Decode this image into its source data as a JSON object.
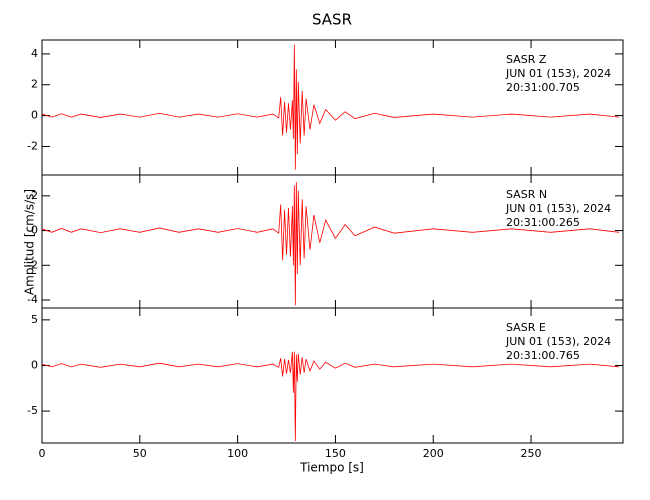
{
  "chart_data": [
    {
      "type": "line",
      "title": "SASR",
      "annotations": [
        "SASR   Z",
        "JUN 01 (153), 2024",
        "20:31:00.705"
      ],
      "x": [
        0,
        5,
        10,
        15,
        20,
        30,
        40,
        50,
        60,
        70,
        80,
        90,
        100,
        110,
        118,
        121,
        122,
        123,
        124,
        125,
        126,
        127,
        128,
        128.5,
        129,
        129.5,
        130,
        130.5,
        131,
        132,
        133,
        134,
        135,
        137,
        139,
        142,
        145,
        150,
        155,
        160,
        170,
        180,
        200,
        220,
        240,
        260,
        280,
        295
      ],
      "values": [
        0.1,
        -0.1,
        0.12,
        -0.1,
        0.1,
        -0.12,
        0.1,
        -0.1,
        0.15,
        -0.1,
        0.1,
        -0.1,
        0.12,
        -0.1,
        0.1,
        -0.15,
        1.2,
        -1.3,
        0.9,
        -1.1,
        0.8,
        -0.9,
        1.0,
        -1.5,
        4.6,
        -3.5,
        3.0,
        -2.5,
        2.2,
        -1.8,
        1.6,
        -1.3,
        1.1,
        -0.9,
        0.7,
        -0.5,
        0.4,
        -0.3,
        0.25,
        -0.2,
        0.15,
        -0.12,
        0.1,
        -0.1,
        0.1,
        -0.1,
        0.1,
        -0.1
      ],
      "color": "#ff0000",
      "xlim": [
        0,
        297
      ],
      "ylim": [
        -3.85,
        4.9
      ],
      "yticks": [
        -2,
        0,
        2,
        4
      ]
    },
    {
      "type": "line",
      "ylabel": "Amplitud [cm/s/s]",
      "annotations": [
        "SASR   N",
        "JUN 01 (153), 2024",
        "20:31:00.265"
      ],
      "x": [
        0,
        5,
        10,
        15,
        20,
        30,
        40,
        50,
        60,
        70,
        80,
        90,
        100,
        110,
        118,
        121,
        122,
        123,
        124,
        125,
        126,
        127,
        128,
        128.5,
        129,
        129.5,
        130,
        130.5,
        131,
        132,
        133,
        134,
        135,
        137,
        139,
        142,
        145,
        150,
        155,
        160,
        170,
        180,
        200,
        220,
        240,
        260,
        280,
        295
      ],
      "values": [
        0.1,
        -0.1,
        0.12,
        -0.1,
        0.1,
        -0.12,
        0.1,
        -0.1,
        0.15,
        -0.1,
        0.1,
        -0.1,
        0.12,
        -0.1,
        0.1,
        -0.15,
        1.5,
        -1.7,
        1.2,
        -1.4,
        1.3,
        -1.5,
        1.4,
        -2.0,
        2.6,
        -4.3,
        2.8,
        -2.5,
        2.3,
        -2.0,
        1.8,
        -1.6,
        1.4,
        -1.1,
        0.9,
        -0.7,
        0.6,
        -0.45,
        0.35,
        -0.3,
        0.2,
        -0.15,
        0.1,
        -0.1,
        0.1,
        -0.1,
        0.1,
        -0.1
      ],
      "color": "#ff0000",
      "xlim": [
        0,
        297
      ],
      "ylim": [
        -4.46,
        3.2
      ],
      "yticks": [
        -4,
        -2,
        0,
        2
      ]
    },
    {
      "type": "line",
      "xlabel": "Tiempo [s]",
      "annotations": [
        "SASR   E",
        "JUN 01 (153), 2024",
        "20:31:00.765"
      ],
      "x": [
        0,
        5,
        10,
        15,
        20,
        30,
        40,
        50,
        60,
        70,
        80,
        90,
        100,
        110,
        118,
        121,
        122,
        123,
        124,
        125,
        126,
        127,
        128,
        128.5,
        129,
        129.5,
        130,
        130.5,
        131,
        132,
        133,
        134,
        135,
        137,
        139,
        142,
        145,
        150,
        155,
        160,
        170,
        180,
        200,
        220,
        240,
        260,
        280,
        295
      ],
      "values": [
        0.15,
        -0.15,
        0.2,
        -0.15,
        0.15,
        -0.2,
        0.15,
        -0.15,
        0.25,
        -0.15,
        0.15,
        -0.15,
        0.2,
        -0.15,
        0.15,
        -0.2,
        0.8,
        -1.2,
        0.7,
        -0.9,
        0.6,
        -0.8,
        1.5,
        -3.0,
        1.5,
        -8.3,
        1.2,
        -1.8,
        1.3,
        -1.0,
        0.9,
        -0.8,
        0.7,
        -0.6,
        0.5,
        -0.4,
        0.35,
        -0.3,
        0.25,
        -0.2,
        0.15,
        -0.15,
        0.15,
        -0.15,
        0.15,
        -0.15,
        0.15,
        -0.15
      ],
      "color": "#ff0000",
      "xlim": [
        0,
        297
      ],
      "ylim": [
        -8.5,
        6.3
      ],
      "yticks": [
        -5,
        0,
        5
      ],
      "xticks": [
        0,
        50,
        100,
        150,
        200,
        250
      ]
    }
  ]
}
